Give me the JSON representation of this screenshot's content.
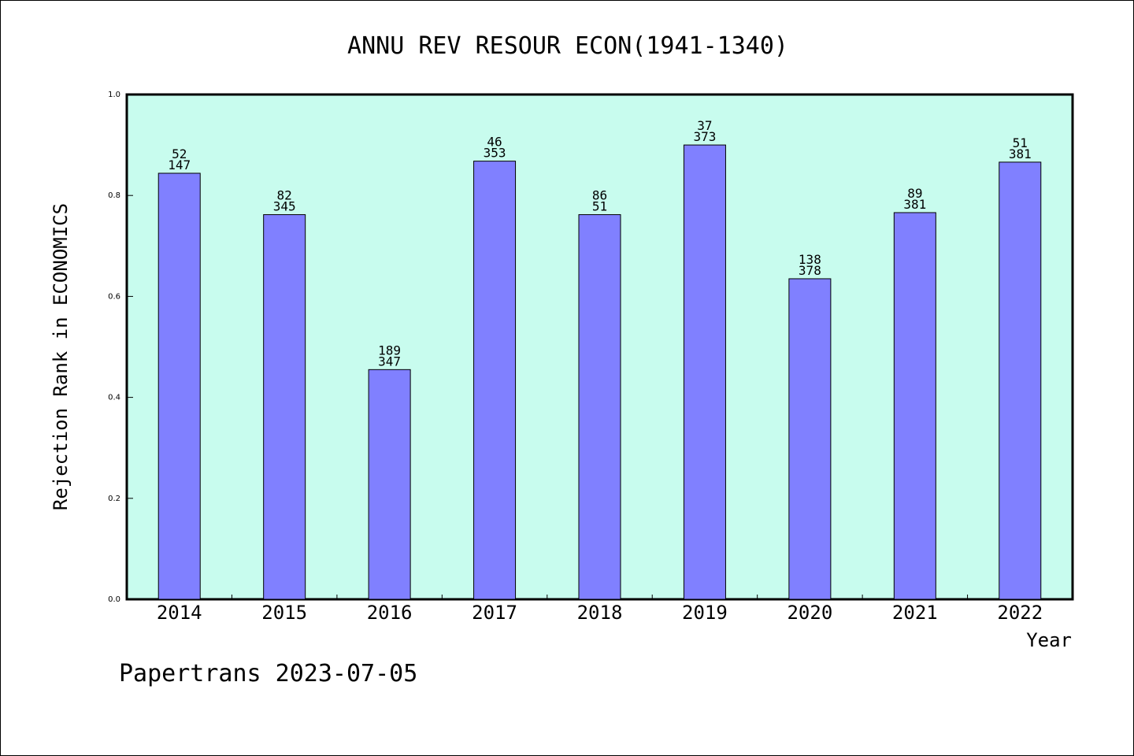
{
  "footer": "Papertrans 2023-07-05",
  "colors": {
    "plot_background": "#c8fcee",
    "bar_fill": "#8080ff",
    "bar_stroke": "#000000"
  },
  "chart_data": {
    "type": "bar",
    "title": "ANNU REV RESOUR ECON(1941-1340)",
    "xlabel": "Year",
    "ylabel": "Rejection Rank in ECONOMICS",
    "ylim": [
      0,
      1.0
    ],
    "yticks": [
      "0.0",
      "0.2",
      "0.4",
      "0.6",
      "0.8",
      "1.0"
    ],
    "grid": false,
    "categories": [
      "2014",
      "2015",
      "2016",
      "2017",
      "2018",
      "2019",
      "2020",
      "2021",
      "2022"
    ],
    "values": [
      0.844,
      0.762,
      0.455,
      0.868,
      0.762,
      0.9,
      0.635,
      0.766,
      0.866
    ],
    "labels_top": [
      "52",
      "82",
      "189",
      "46",
      "86",
      "37",
      "138",
      "89",
      "51"
    ],
    "labels_bottom": [
      "147",
      "345",
      "347",
      "353",
      "51",
      "373",
      "378",
      "381",
      "381"
    ]
  }
}
